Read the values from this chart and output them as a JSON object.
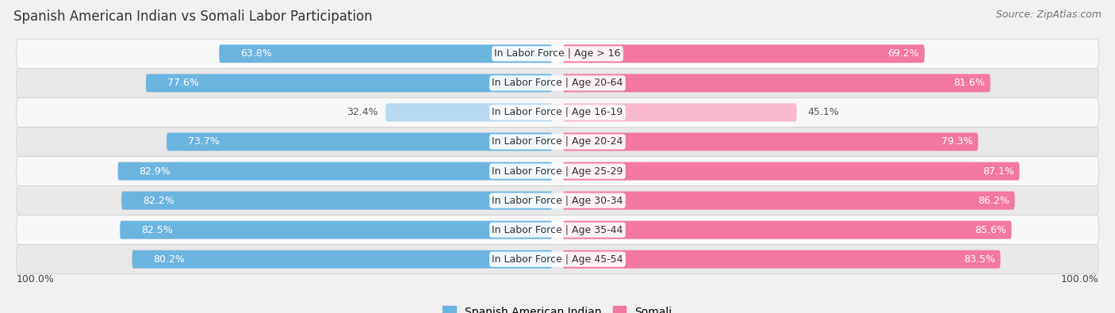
{
  "title": "Spanish American Indian vs Somali Labor Participation",
  "source": "Source: ZipAtlas.com",
  "categories": [
    "In Labor Force | Age > 16",
    "In Labor Force | Age 20-64",
    "In Labor Force | Age 16-19",
    "In Labor Force | Age 20-24",
    "In Labor Force | Age 25-29",
    "In Labor Force | Age 30-34",
    "In Labor Force | Age 35-44",
    "In Labor Force | Age 45-54"
  ],
  "spanish_values": [
    63.8,
    77.6,
    32.4,
    73.7,
    82.9,
    82.2,
    82.5,
    80.2
  ],
  "somali_values": [
    69.2,
    81.6,
    45.1,
    79.3,
    87.1,
    86.2,
    85.6,
    83.5
  ],
  "spanish_color": "#6cb4e0",
  "spanish_color_light": "#b8d9f0",
  "somali_color": "#f278a0",
  "somali_color_light": "#f8b8ce",
  "bar_height": 0.62,
  "bg_color": "#f0f0f0",
  "row_bg_light": "#f8f8f8",
  "row_bg_dark": "#e8e8e8",
  "label_fontsize": 9,
  "value_fontsize": 9,
  "title_fontsize": 12,
  "source_fontsize": 9,
  "legend_fontsize": 10,
  "max_val": 100.0,
  "x_label": "100.0%",
  "light_rows": [
    2
  ],
  "white_text_color": "#ffffff",
  "dark_text_color": "#555555"
}
